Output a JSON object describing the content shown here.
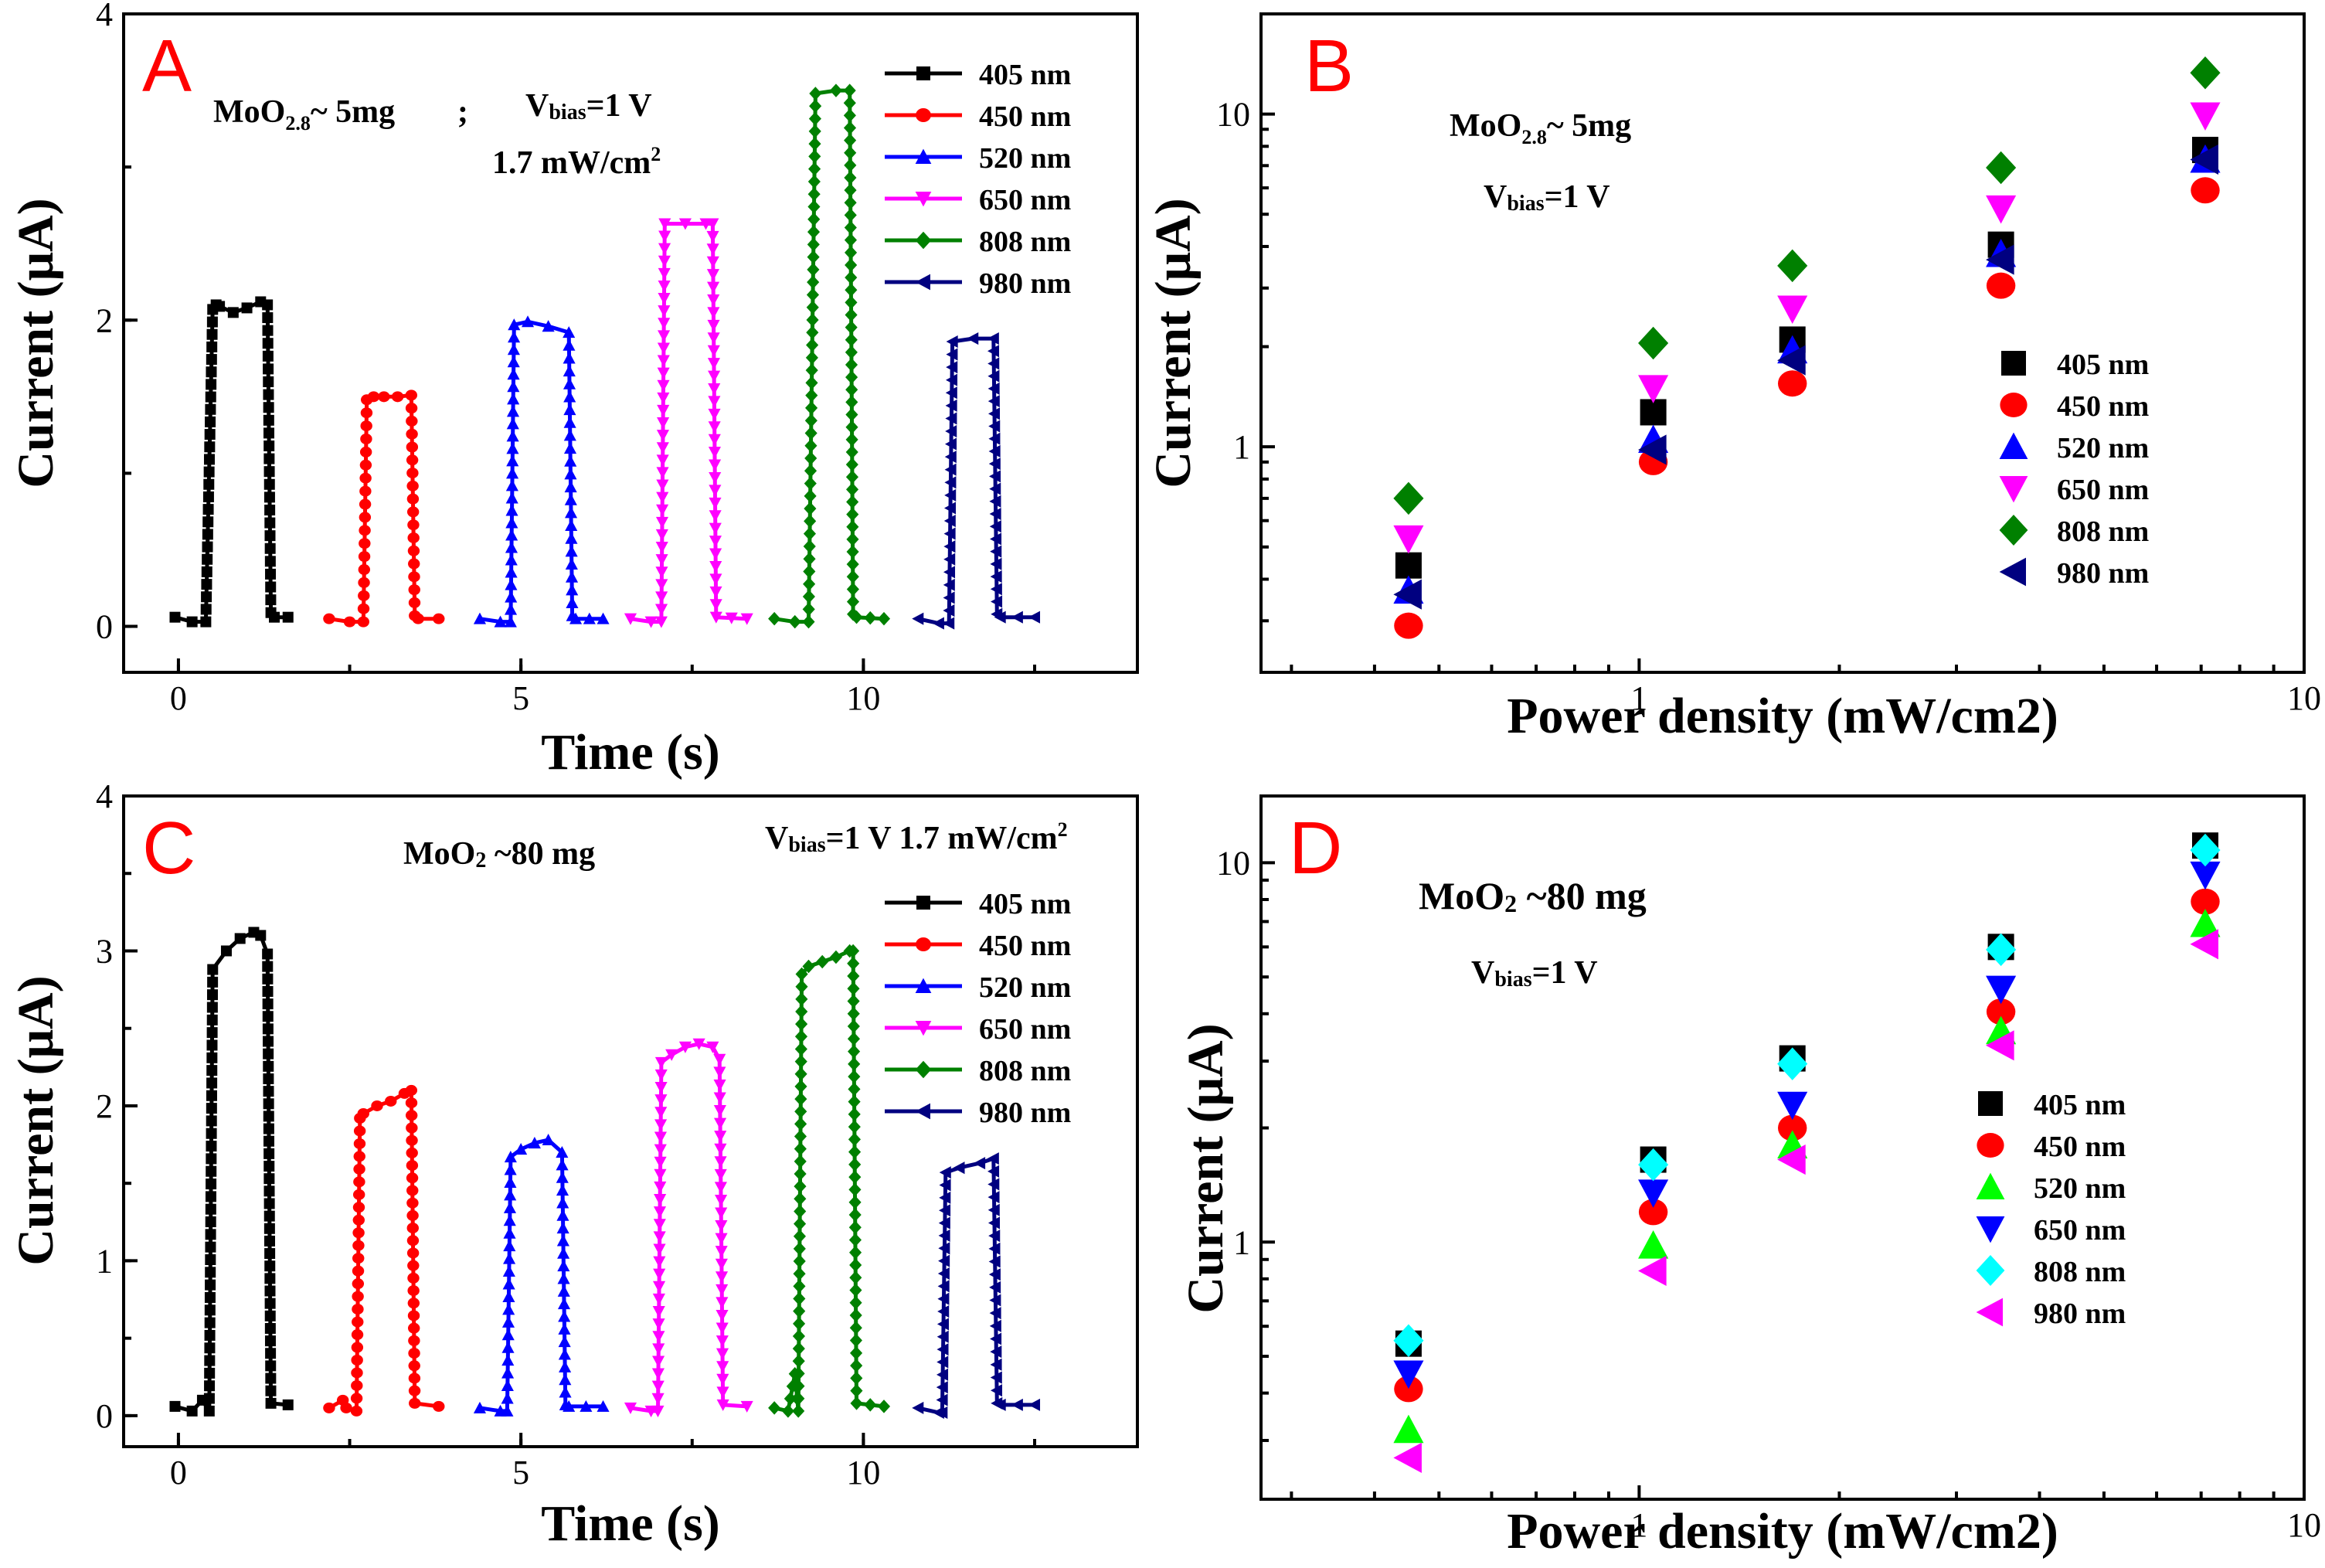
{
  "chart_data": [
    {
      "panel": "A",
      "type": "line",
      "xlabel": "Time (s)",
      "ylabel": "Current (μA)",
      "xlim": [
        -0.8,
        14.0
      ],
      "ylim": [
        -0.3,
        4.0
      ],
      "xticks": [
        0,
        5,
        10
      ],
      "yticks": [
        0,
        2,
        4
      ],
      "annotations": {
        "material": "MoO2.8~ 5mg",
        "sample_base": "MoO",
        "sample_sub": "2.8",
        "sample_rest": "~ 5mg",
        "sep": ";",
        "bias": "Vbias=1 V",
        "bias_pre": "V",
        "bias_sub": "bias",
        "bias_post": "=1 V",
        "power": "1.7 mW/cm2",
        "power_base": "1.7 mW/cm",
        "power_sup": "2"
      },
      "series": [
        {
          "name": "405 nm",
          "color": "#000000",
          "marker": "square",
          "x": [
            -0.05,
            0.2,
            0.4,
            0.5,
            0.55,
            0.6,
            0.8,
            1.0,
            1.2,
            1.3,
            1.35,
            1.4,
            1.6
          ],
          "y": [
            0.06,
            0.03,
            0.03,
            2.07,
            2.1,
            2.09,
            2.05,
            2.08,
            2.12,
            2.1,
            0.09,
            0.06,
            0.06
          ]
        },
        {
          "name": "450 nm",
          "color": "#ff0000",
          "marker": "circle",
          "x": [
            2.2,
            2.5,
            2.7,
            2.75,
            2.85,
            3.0,
            3.2,
            3.4,
            3.45,
            3.5,
            3.8
          ],
          "y": [
            0.05,
            0.03,
            0.03,
            1.48,
            1.5,
            1.5,
            1.5,
            1.51,
            0.07,
            0.05,
            0.05
          ]
        },
        {
          "name": "520 nm",
          "color": "#0000ff",
          "marker": "triangle-up",
          "x": [
            4.4,
            4.7,
            4.85,
            4.9,
            5.1,
            5.4,
            5.7,
            5.75,
            5.8,
            6.2
          ],
          "y": [
            0.05,
            0.03,
            0.03,
            1.97,
            1.99,
            1.96,
            1.92,
            0.07,
            0.05,
            0.05
          ]
        },
        {
          "name": "650 nm",
          "color": "#ff00ff",
          "marker": "triangle-down",
          "x": [
            6.6,
            6.9,
            7.05,
            7.1,
            7.4,
            7.7,
            7.8,
            7.85,
            8.3
          ],
          "y": [
            0.05,
            0.03,
            0.03,
            2.63,
            2.63,
            2.63,
            2.63,
            0.06,
            0.05
          ]
        },
        {
          "name": "808 nm",
          "color": "#008000",
          "marker": "diamond",
          "x": [
            8.7,
            9.0,
            9.2,
            9.3,
            9.6,
            9.8,
            9.85,
            9.9,
            10.3
          ],
          "y": [
            0.05,
            0.03,
            0.03,
            3.48,
            3.5,
            3.5,
            0.08,
            0.06,
            0.05
          ]
        },
        {
          "name": "980 nm",
          "color": "#000080",
          "marker": "triangle-left",
          "x": [
            10.8,
            11.1,
            11.25,
            11.3,
            11.6,
            11.9,
            11.95,
            12.0,
            12.5
          ],
          "y": [
            0.05,
            0.02,
            0.02,
            1.86,
            1.88,
            1.88,
            0.08,
            0.06,
            0.06
          ]
        }
      ]
    },
    {
      "panel": "B",
      "type": "scatter",
      "xscale": "log",
      "yscale": "log",
      "xlabel": "Power density (mW/cm2)",
      "ylabel": "Current (μA)",
      "xlim": [
        0.27,
        10.0
      ],
      "ylim": [
        0.21,
        20.0
      ],
      "xticks": [
        1,
        10
      ],
      "yticks": [
        1,
        10
      ],
      "annotations": {
        "material": "MoO2.8~ 5mg",
        "sample_base": "MoO",
        "sample_sub": "2.8",
        "sample_rest": "~ 5mg",
        "bias": "Vbias=1 V",
        "bias_pre": "V",
        "bias_sub": "bias",
        "bias_post": "=1 V"
      },
      "x": [
        0.45,
        1.05,
        1.7,
        3.5,
        7.1
      ],
      "series": [
        {
          "name": "405 nm",
          "color": "#000000",
          "marker": "square",
          "values": [
            0.44,
            1.27,
            2.1,
            4.05,
            7.8
          ]
        },
        {
          "name": "450 nm",
          "color": "#ff0000",
          "marker": "circle",
          "values": [
            0.29,
            0.9,
            1.55,
            3.05,
            5.9
          ]
        },
        {
          "name": "520 nm",
          "color": "#0000ff",
          "marker": "triangle-up",
          "values": [
            0.37,
            1.05,
            1.95,
            3.8,
            7.3
          ]
        },
        {
          "name": "650 nm",
          "color": "#ff00ff",
          "marker": "triangle-down",
          "values": [
            0.53,
            1.5,
            2.6,
            5.2,
            9.9
          ]
        },
        {
          "name": "808 nm",
          "color": "#008000",
          "marker": "diamond",
          "values": [
            0.7,
            2.05,
            3.5,
            6.9,
            13.3
          ]
        },
        {
          "name": "980 nm",
          "color": "#000080",
          "marker": "triangle-left",
          "values": [
            0.36,
            0.98,
            1.82,
            3.65,
            7.3
          ]
        }
      ]
    },
    {
      "panel": "C",
      "type": "line",
      "xlabel": "Time (s)",
      "ylabel": "Current (μA)",
      "xlim": [
        -0.8,
        14.0
      ],
      "ylim": [
        -0.2,
        4.0
      ],
      "xticks": [
        0,
        5,
        10
      ],
      "yticks": [
        0,
        1,
        2,
        3,
        4
      ],
      "annotations": {
        "material": "MoO2 ~80 mg",
        "sample_base": "MoO",
        "sample_sub": "2",
        "sample_rest": " ~80 mg",
        "bias": "Vbias=1 V 1.7 mW/cm2",
        "bias_pre": "V",
        "bias_sub": "bias",
        "bias_post": "=1 V  1.7 mW/cm",
        "power_sup": "2"
      },
      "series": [
        {
          "name": "405 nm",
          "color": "#000000",
          "marker": "square",
          "x": [
            -0.05,
            0.2,
            0.35,
            0.45,
            0.5,
            0.7,
            0.9,
            1.1,
            1.2,
            1.3,
            1.35,
            1.6
          ],
          "y": [
            0.06,
            0.03,
            0.1,
            0.03,
            2.88,
            3.0,
            3.08,
            3.12,
            3.1,
            2.98,
            0.08,
            0.07
          ]
        },
        {
          "name": "450 nm",
          "color": "#ff0000",
          "marker": "circle",
          "x": [
            2.2,
            2.4,
            2.45,
            2.6,
            2.65,
            2.7,
            2.9,
            3.1,
            3.3,
            3.4,
            3.45,
            3.8
          ],
          "y": [
            0.05,
            0.1,
            0.05,
            0.03,
            1.92,
            1.95,
            2.0,
            2.03,
            2.08,
            2.1,
            0.08,
            0.06
          ]
        },
        {
          "name": "520 nm",
          "color": "#0000ff",
          "marker": "triangle-up",
          "x": [
            4.4,
            4.7,
            4.8,
            4.85,
            5.0,
            5.2,
            5.4,
            5.6,
            5.65,
            5.7,
            6.2
          ],
          "y": [
            0.05,
            0.03,
            0.03,
            1.67,
            1.72,
            1.76,
            1.78,
            1.7,
            0.07,
            0.06,
            0.06
          ]
        },
        {
          "name": "650 nm",
          "color": "#ff00ff",
          "marker": "triangle-down",
          "x": [
            6.6,
            6.9,
            7.0,
            7.05,
            7.2,
            7.4,
            7.6,
            7.8,
            7.9,
            7.95,
            8.3
          ],
          "y": [
            0.05,
            0.03,
            0.03,
            2.28,
            2.33,
            2.38,
            2.4,
            2.38,
            2.3,
            0.07,
            0.06
          ]
        },
        {
          "name": "808 nm",
          "color": "#008000",
          "marker": "diamond",
          "x": [
            8.7,
            8.9,
            9.0,
            9.05,
            9.1,
            9.2,
            9.4,
            9.6,
            9.8,
            9.85,
            9.9,
            10.3
          ],
          "y": [
            0.05,
            0.03,
            0.27,
            0.03,
            2.85,
            2.9,
            2.93,
            2.96,
            3.0,
            3.0,
            0.08,
            0.06
          ]
        },
        {
          "name": "980 nm",
          "color": "#000080",
          "marker": "triangle-left",
          "x": [
            10.8,
            11.1,
            11.15,
            11.2,
            11.4,
            11.7,
            11.9,
            11.95,
            12.0,
            12.5
          ],
          "y": [
            0.05,
            0.02,
            0.02,
            1.57,
            1.6,
            1.63,
            1.66,
            0.08,
            0.07,
            0.07
          ]
        }
      ]
    },
    {
      "panel": "D",
      "type": "scatter",
      "xscale": "log",
      "yscale": "log",
      "xlabel": "Power density (mW/cm2)",
      "ylabel": "Current (μA)",
      "xlim": [
        0.27,
        10.0
      ],
      "ylim": [
        0.21,
        15.0
      ],
      "xticks": [
        1,
        10
      ],
      "yticks": [
        1,
        10
      ],
      "annotations": {
        "material": "MoO2 ~80 mg",
        "sample_base": "MoO",
        "sample_sub": "2",
        "sample_rest": " ~80 mg",
        "bias": "Vbias=1 V",
        "bias_pre": "V",
        "bias_sub": "bias",
        "bias_post": "=1 V"
      },
      "x": [
        0.45,
        1.05,
        1.7,
        3.5,
        7.1
      ],
      "series": [
        {
          "name": "405 nm",
          "color": "#000000",
          "marker": "square",
          "values": [
            0.54,
            1.65,
            3.05,
            6.0,
            11.1
          ]
        },
        {
          "name": "450 nm",
          "color": "#ff0000",
          "marker": "circle",
          "values": [
            0.41,
            1.2,
            2.0,
            4.05,
            7.9
          ]
        },
        {
          "name": "520 nm",
          "color": "#00ff00",
          "marker": "triangle-up",
          "values": [
            0.32,
            0.98,
            1.8,
            3.6,
            6.9
          ]
        },
        {
          "name": "650 nm",
          "color": "#0000ff",
          "marker": "triangle-down",
          "values": [
            0.45,
            1.35,
            2.3,
            4.65,
            9.3
          ]
        },
        {
          "name": "808 nm",
          "color": "#00ffff",
          "marker": "diamond",
          "values": [
            0.55,
            1.6,
            2.95,
            5.9,
            10.8
          ]
        },
        {
          "name": "980 nm",
          "color": "#ff00ff",
          "marker": "triangle-left",
          "values": [
            0.27,
            0.84,
            1.65,
            3.3,
            6.1
          ]
        }
      ]
    }
  ]
}
